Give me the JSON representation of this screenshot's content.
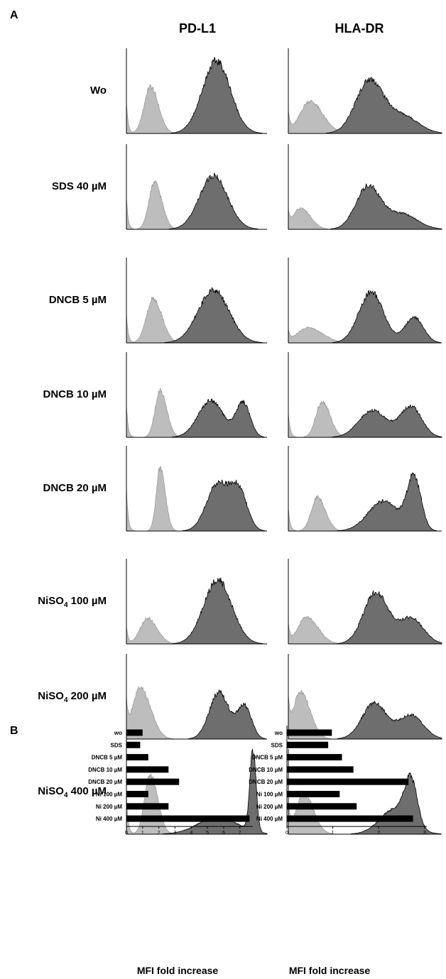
{
  "panels": {
    "a": "A",
    "b": "B"
  },
  "columns": [
    "PD-L1",
    "HLA-DR"
  ],
  "rows": [
    {
      "pre": "Wo",
      "sub": "",
      "post": ""
    },
    {
      "pre": "SDS 40 µM",
      "sub": "",
      "post": ""
    },
    {
      "pre": "DNCB 5 µM",
      "sub": "",
      "post": ""
    },
    {
      "pre": "DNCB 10 µM",
      "sub": "",
      "post": ""
    },
    {
      "pre": "DNCB 20 µM",
      "sub": "",
      "post": ""
    },
    {
      "pre": "NiSO",
      "sub": "4",
      "post": " 100 µM"
    },
    {
      "pre": "NiSO",
      "sub": "4",
      "post": " 200 µM"
    },
    {
      "pre": "NiSO",
      "sub": "4",
      "post": " 400 µM"
    }
  ],
  "colors": {
    "control": "#bdbdbd",
    "stained": "#6e6e6e",
    "axis": "#000000",
    "bar": "#000000"
  },
  "chart_data": [
    {
      "type": "area",
      "description_key": "flow cytometry histograms",
      "grid": false,
      "x_range": [
        0,
        1
      ],
      "series_order": [
        "control",
        "stained"
      ],
      "panels": {
        "PD-L1": [
          {
            "row": 0,
            "control": {
              "peak": 0.17,
              "width": 0.055,
              "height": 0.55
            },
            "stained": {
              "components": [
                {
                  "mu": 0.64,
                  "sigma": 0.1,
                  "h": 0.85
                }
              ]
            }
          },
          {
            "row": 1,
            "control": {
              "peak": 0.2,
              "width": 0.05,
              "height": 0.55
            },
            "stained": {
              "components": [
                {
                  "mu": 0.62,
                  "sigma": 0.1,
                  "h": 0.63
                }
              ]
            }
          },
          {
            "row": 2,
            "control": {
              "peak": 0.19,
              "width": 0.06,
              "height": 0.52
            },
            "stained": {
              "components": [
                {
                  "mu": 0.62,
                  "sigma": 0.11,
                  "h": 0.62
                }
              ]
            }
          },
          {
            "row": 3,
            "control": {
              "peak": 0.24,
              "width": 0.045,
              "height": 0.55
            },
            "stained": {
              "components": [
                {
                  "mu": 0.6,
                  "sigma": 0.09,
                  "h": 0.43
                },
                {
                  "mu": 0.83,
                  "sigma": 0.05,
                  "h": 0.4
                }
              ]
            }
          },
          {
            "row": 4,
            "control": {
              "peak": 0.24,
              "width": 0.035,
              "height": 0.74
            },
            "stained": {
              "components": [
                {
                  "mu": 0.65,
                  "sigma": 0.08,
                  "h": 0.55
                },
                {
                  "mu": 0.8,
                  "sigma": 0.06,
                  "h": 0.45
                }
              ]
            }
          },
          {
            "row": 5,
            "control": {
              "peak": 0.15,
              "width": 0.065,
              "height": 0.3
            },
            "stained": {
              "components": [
                {
                  "mu": 0.65,
                  "sigma": 0.1,
                  "h": 0.75
                }
              ]
            }
          },
          {
            "row": 6,
            "control": {
              "peak": 0.1,
              "width": 0.07,
              "height": 0.6
            },
            "stained": {
              "components": [
                {
                  "mu": 0.66,
                  "sigma": 0.07,
                  "h": 0.55
                },
                {
                  "mu": 0.84,
                  "sigma": 0.05,
                  "h": 0.38
                }
              ]
            }
          },
          {
            "row": 7,
            "control": {
              "peak": 0.17,
              "width": 0.05,
              "height": 0.7
            },
            "stained": {
              "components": [
                {
                  "mu": 0.65,
                  "sigma": 0.14,
                  "h": 0.2
                },
                {
                  "mu": 0.9,
                  "sigma": 0.022,
                  "h": 0.95
                }
              ]
            }
          }
        ],
        "HLA-DR": [
          {
            "row": 0,
            "control": {
              "peak": 0.14,
              "width": 0.08,
              "height": 0.38
            },
            "stained": {
              "components": [
                {
                  "mu": 0.53,
                  "sigma": 0.09,
                  "h": 0.62
                },
                {
                  "mu": 0.75,
                  "sigma": 0.1,
                  "h": 0.2
                }
              ]
            }
          },
          {
            "row": 1,
            "control": {
              "peak": 0.08,
              "width": 0.06,
              "height": 0.25
            },
            "stained": {
              "components": [
                {
                  "mu": 0.52,
                  "sigma": 0.08,
                  "h": 0.5
                },
                {
                  "mu": 0.74,
                  "sigma": 0.1,
                  "h": 0.18
                }
              ]
            }
          },
          {
            "row": 2,
            "control": {
              "peak": 0.13,
              "width": 0.09,
              "height": 0.18
            },
            "stained": {
              "components": [
                {
                  "mu": 0.54,
                  "sigma": 0.08,
                  "h": 0.6
                },
                {
                  "mu": 0.82,
                  "sigma": 0.06,
                  "h": 0.3
                }
              ]
            }
          },
          {
            "row": 3,
            "control": {
              "peak": 0.22,
              "width": 0.05,
              "height": 0.42
            },
            "stained": {
              "components": [
                {
                  "mu": 0.55,
                  "sigma": 0.09,
                  "h": 0.32
                },
                {
                  "mu": 0.8,
                  "sigma": 0.07,
                  "h": 0.36
                }
              ]
            }
          },
          {
            "row": 4,
            "control": {
              "peak": 0.19,
              "width": 0.05,
              "height": 0.4
            },
            "stained": {
              "components": [
                {
                  "mu": 0.62,
                  "sigma": 0.1,
                  "h": 0.35
                },
                {
                  "mu": 0.82,
                  "sigma": 0.045,
                  "h": 0.62
                }
              ]
            }
          },
          {
            "row": 5,
            "control": {
              "peak": 0.12,
              "width": 0.07,
              "height": 0.32
            },
            "stained": {
              "components": [
                {
                  "mu": 0.57,
                  "sigma": 0.08,
                  "h": 0.6
                },
                {
                  "mu": 0.8,
                  "sigma": 0.08,
                  "h": 0.3
                }
              ]
            }
          },
          {
            "row": 6,
            "control": {
              "peak": 0.08,
              "width": 0.06,
              "height": 0.55
            },
            "stained": {
              "components": [
                {
                  "mu": 0.56,
                  "sigma": 0.08,
                  "h": 0.42
                },
                {
                  "mu": 0.8,
                  "sigma": 0.08,
                  "h": 0.28
                }
              ]
            }
          },
          {
            "row": 7,
            "control": {
              "peak": 0.1,
              "width": 0.06,
              "height": 0.48
            },
            "stained": {
              "components": [
                {
                  "mu": 0.7,
                  "sigma": 0.1,
                  "h": 0.3
                },
                {
                  "mu": 0.8,
                  "sigma": 0.04,
                  "h": 0.5
                }
              ]
            }
          }
        ]
      }
    },
    {
      "type": "bar",
      "orientation": "horizontal",
      "title": "PD-L1",
      "xlabel": "MFI fold increase",
      "categories": [
        "wo",
        "SDS",
        "DNCB 5 µM",
        "DNCB 10 µM",
        "DNCB 20 µM",
        "Ni 100 µM",
        "Ni 200 µM",
        "Ni 400 µM"
      ],
      "values": [
        1.0,
        0.85,
        1.35,
        2.6,
        3.25,
        1.35,
        2.6,
        7.6
      ],
      "xlim": [
        0,
        7.8
      ],
      "xticks": [
        "0",
        "1",
        "2",
        "3",
        "4",
        "5",
        "6",
        "7"
      ]
    },
    {
      "type": "bar",
      "orientation": "horizontal",
      "title": "HLA-DR",
      "xlabel": "MFI fold increase",
      "categories": [
        "wo",
        "SDS",
        "DNCB 5 µM",
        "DNCB 10 µM",
        "DNCB 20 µM",
        "Ni 100 µM",
        "Ni 200 µM",
        "Ni 400 µM"
      ],
      "values": [
        0.98,
        0.9,
        1.2,
        1.45,
        2.65,
        1.15,
        1.52,
        2.75
      ],
      "xlim": [
        0,
        3.05
      ],
      "xticks": [
        "0",
        "1",
        "2",
        "3"
      ]
    }
  ]
}
